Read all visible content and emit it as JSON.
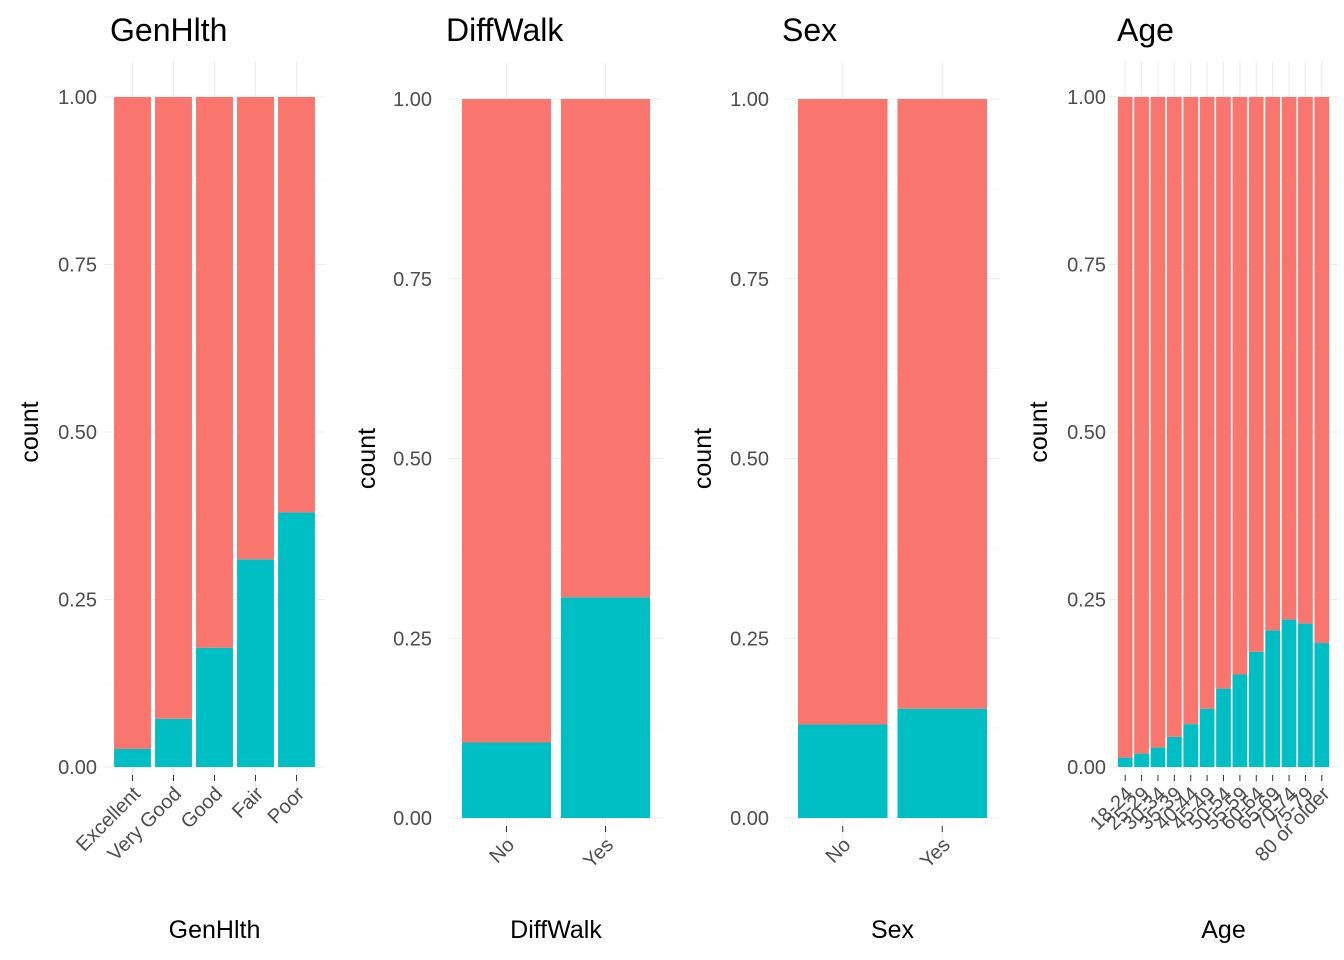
{
  "colors": {
    "no": "#F8766D",
    "yes": "#00BFC4"
  },
  "chart_data": [
    {
      "type": "bar",
      "stacked": "fill",
      "title": "GenHlth",
      "xlabel": "GenHlth",
      "ylabel": "count",
      "ylim": [
        0,
        1
      ],
      "yticks": [
        "0.00",
        "0.25",
        "0.50",
        "0.75",
        "1.00"
      ],
      "grid": true,
      "categories": [
        "Excellent",
        "Very Good",
        "Good",
        "Fair",
        "Poor"
      ],
      "series": [
        {
          "values": [
            0.027,
            0.072,
            0.178,
            0.31,
            0.38
          ]
        },
        {
          "values": [
            0.973,
            0.928,
            0.822,
            0.69,
            0.62
          ]
        }
      ]
    },
    {
      "type": "bar",
      "stacked": "fill",
      "title": "DiffWalk",
      "xlabel": "DiffWalk",
      "ylabel": "count",
      "ylim": [
        0,
        1
      ],
      "yticks": [
        "0.00",
        "0.25",
        "0.50",
        "0.75",
        "1.00"
      ],
      "grid": true,
      "categories": [
        "No",
        "Yes"
      ],
      "series": [
        {
          "values": [
            0.105,
            0.307
          ]
        },
        {
          "values": [
            0.895,
            0.693
          ]
        }
      ]
    },
    {
      "type": "bar",
      "stacked": "fill",
      "title": "Sex",
      "xlabel": "Sex",
      "ylabel": "count",
      "ylim": [
        0,
        1
      ],
      "yticks": [
        "0.00",
        "0.25",
        "0.50",
        "0.75",
        "1.00"
      ],
      "grid": true,
      "categories": [
        "No",
        "Yes"
      ],
      "series": [
        {
          "values": [
            0.13,
            0.152
          ]
        },
        {
          "values": [
            0.87,
            0.848
          ]
        }
      ]
    },
    {
      "type": "bar",
      "stacked": "fill",
      "title": "Age",
      "xlabel": "Age",
      "ylabel": "count",
      "ylim": [
        0,
        1
      ],
      "yticks": [
        "0.00",
        "0.25",
        "0.50",
        "0.75",
        "1.00"
      ],
      "grid": true,
      "categories": [
        "18-24",
        "25-29",
        "30-34",
        "35-39",
        "40-44",
        "45-49",
        "50-54",
        "55-59",
        "60-64",
        "65-69",
        "70-74",
        "75-79",
        "80 or older"
      ],
      "series": [
        {
          "values": [
            0.014,
            0.02,
            0.029,
            0.045,
            0.064,
            0.087,
            0.117,
            0.138,
            0.172,
            0.204,
            0.22,
            0.214,
            0.185
          ]
        },
        {
          "values": [
            0.986,
            0.98,
            0.971,
            0.955,
            0.936,
            0.913,
            0.883,
            0.862,
            0.828,
            0.796,
            0.78,
            0.786,
            0.815
          ]
        }
      ]
    }
  ]
}
